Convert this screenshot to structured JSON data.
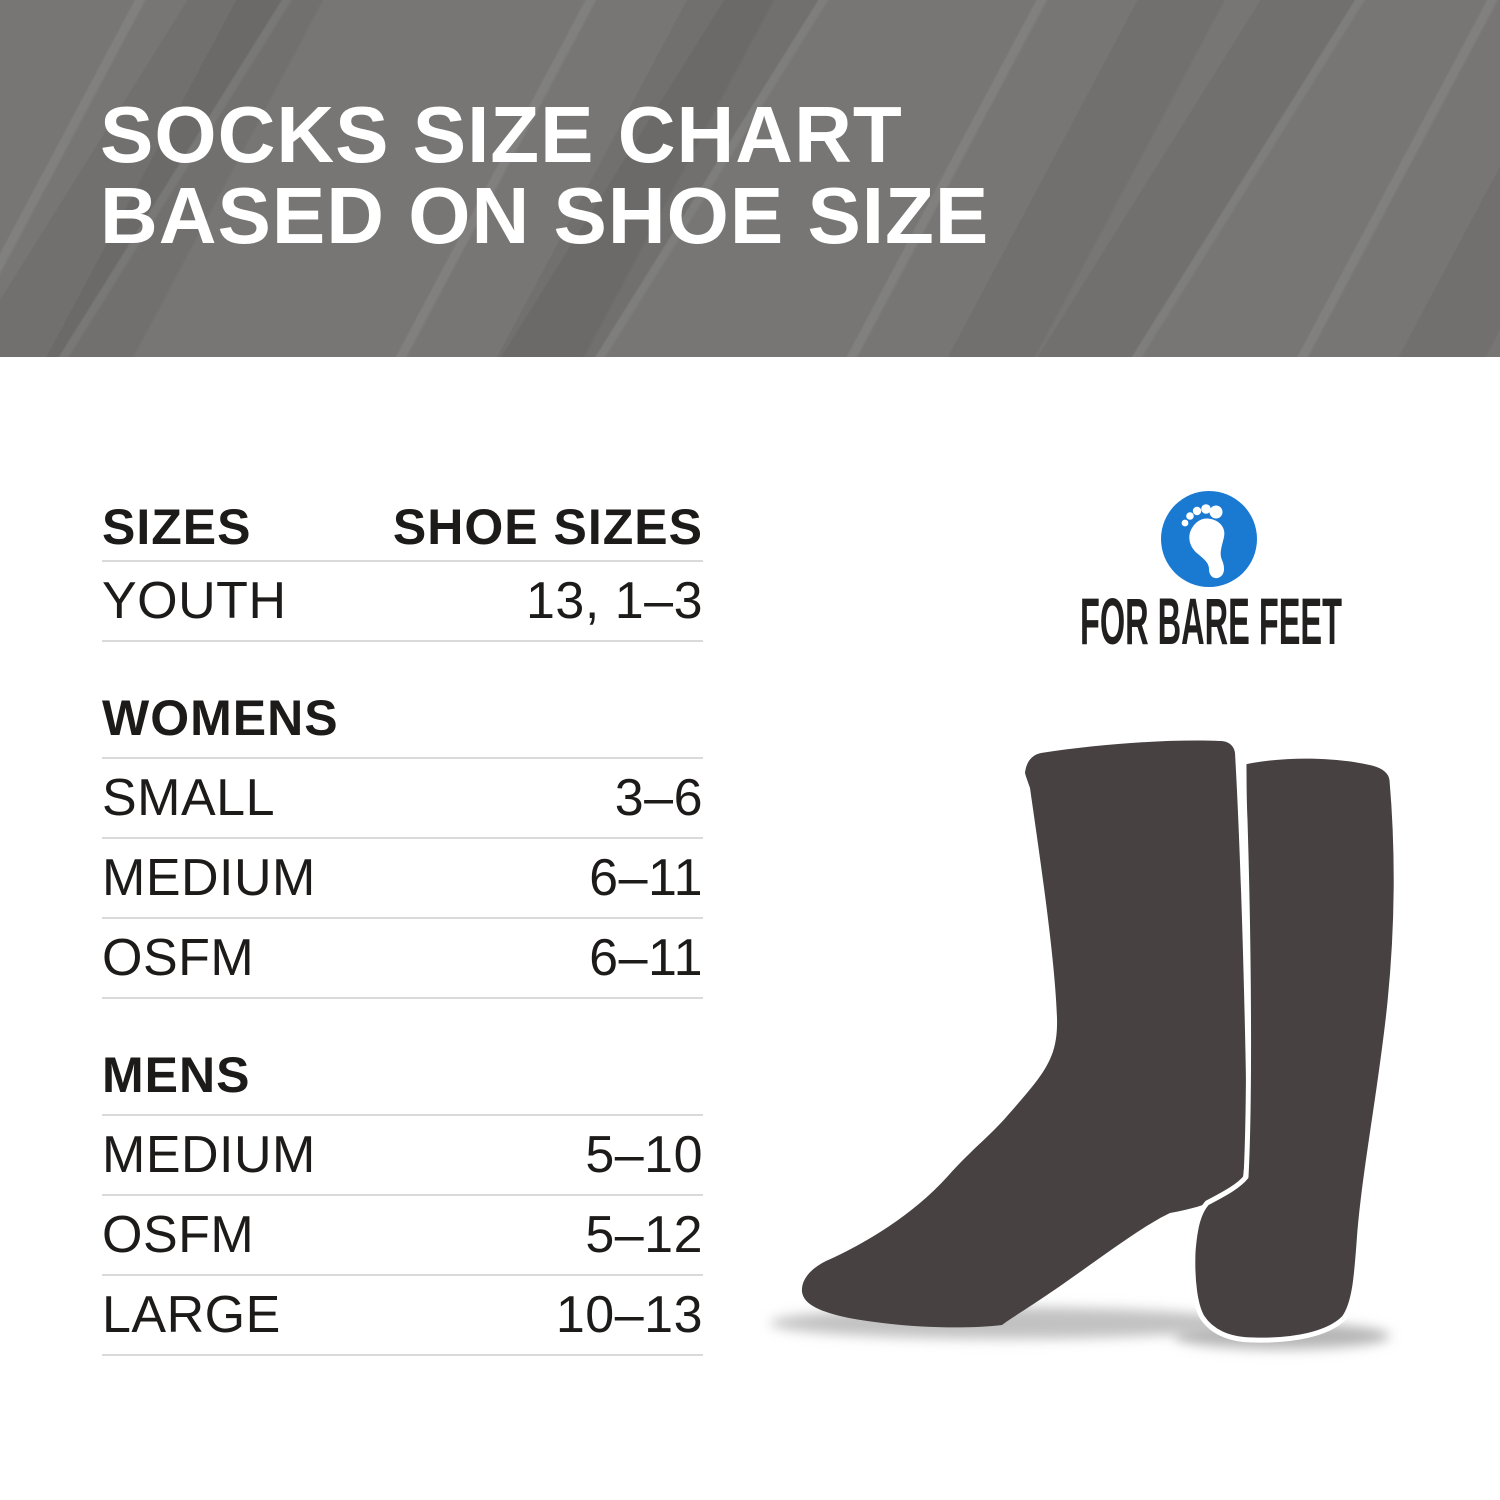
{
  "header": {
    "title_line1": "SOCKS SIZE CHART",
    "title_line2": "BASED ON SHOE SIZE"
  },
  "table": {
    "columns": [
      "SIZES",
      "SHOE SIZES"
    ],
    "groups": [
      {
        "title": null,
        "rows": [
          {
            "label": "YOUTH",
            "value": "13, 1–3"
          }
        ]
      },
      {
        "title": "WOMENS",
        "rows": [
          {
            "label": "SMALL",
            "value": "3–6"
          },
          {
            "label": "MEDIUM",
            "value": "6–11"
          },
          {
            "label": "OSFM",
            "value": "6–11"
          }
        ]
      },
      {
        "title": "MENS",
        "rows": [
          {
            "label": "MEDIUM",
            "value": "5–10"
          },
          {
            "label": "OSFM",
            "value": "5–12"
          },
          {
            "label": "LARGE",
            "value": "10–13"
          }
        ]
      }
    ]
  },
  "logo": {
    "brand": "FOR BARE FEET",
    "icon": "footprint-icon",
    "circle_color": "#1a7ad2",
    "text_color": "#221f1f"
  },
  "illustration": {
    "name": "pair-of-socks",
    "color": "#474142"
  },
  "colors": {
    "banner_bg": "#777674",
    "table_text": "#1d1b1a",
    "divider": "#dadada"
  },
  "chart_data": {
    "type": "table",
    "title": "SOCKS SIZE CHART BASED ON SHOE SIZE",
    "columns": [
      "SIZES",
      "SHOE SIZES"
    ],
    "rows": [
      [
        "YOUTH",
        "13, 1–3"
      ],
      [
        "WOMENS",
        ""
      ],
      [
        "SMALL",
        "3–6"
      ],
      [
        "MEDIUM",
        "6–11"
      ],
      [
        "OSFM",
        "6–11"
      ],
      [
        "MENS",
        ""
      ],
      [
        "MEDIUM",
        "5–10"
      ],
      [
        "OSFM",
        "5–12"
      ],
      [
        "LARGE",
        "10–13"
      ]
    ]
  }
}
